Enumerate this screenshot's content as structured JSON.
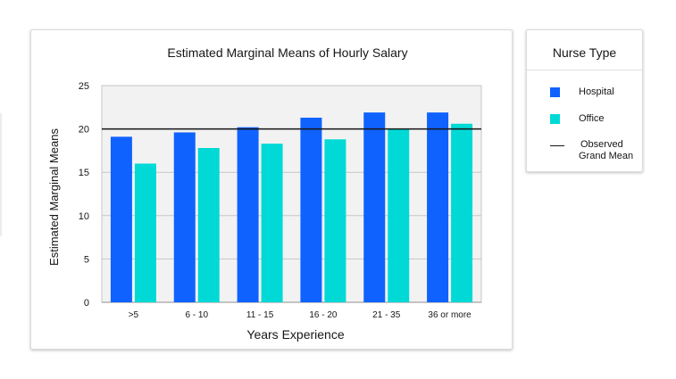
{
  "chart_data": {
    "type": "bar",
    "title": "Estimated Marginal Means of Hourly Salary",
    "xlabel": "Years Experience",
    "ylabel": "Estimated Marginal Means",
    "categories": [
      ">5",
      "6 - 10",
      "11 - 15",
      "16 - 20",
      "21 - 35",
      "36 or more"
    ],
    "series": [
      {
        "name": "Hospital",
        "color": "#0f62fe",
        "values": [
          19.1,
          19.6,
          20.2,
          21.3,
          21.9,
          21.9
        ]
      },
      {
        "name": "Office",
        "color": "#08bdba",
        "values": [
          16.0,
          17.8,
          18.3,
          18.8,
          20.0,
          20.6
        ]
      }
    ],
    "ylim": [
      0,
      25
    ],
    "yticks": [
      0,
      5,
      10,
      15,
      20,
      25
    ],
    "reference_line": {
      "name": "Observed Grand Mean",
      "value": 20.0
    },
    "grid": true,
    "legend_position": "right"
  },
  "legend": {
    "title": "Nurse Type",
    "items": [
      {
        "label": "Hospital",
        "color": "#0f62fe"
      },
      {
        "label": "Office",
        "color": "#00d9d6"
      }
    ],
    "line_label_1": "Observed",
    "line_label_2": "Grand Mean"
  },
  "colors": {
    "hospital": "#0f62fe",
    "office": "#00d9d6",
    "plot_bg": "#f2f2f2",
    "grid": "#c6c6c6"
  }
}
